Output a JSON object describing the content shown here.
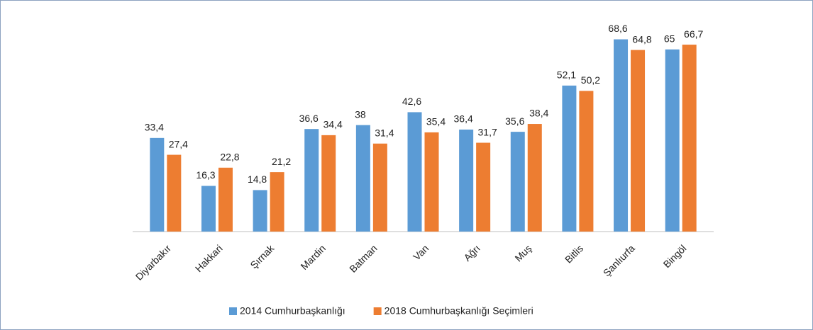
{
  "chart_data": {
    "type": "bar",
    "categories": [
      "Diyarbakır",
      "Hakkari",
      "Şırnak",
      "Mardin",
      "Batman",
      "Van",
      "Ağrı",
      "Muş",
      "Bitlis",
      "Şanlıurfa",
      "Bingöl"
    ],
    "series": [
      {
        "name": "2014 Cumhurbaşkanlığı",
        "color": "#5b9bd5",
        "values": [
          33.4,
          16.3,
          14.8,
          36.6,
          38,
          42.6,
          36.4,
          35.6,
          52.1,
          68.6,
          65
        ],
        "value_labels": [
          "33,4",
          "16,3",
          "14,8",
          "36,6",
          "38",
          "42,6",
          "36,4",
          "35,6",
          "52,1",
          "68,6",
          "65"
        ]
      },
      {
        "name": "2018 Cumhurbaşkanlığı Seçimleri",
        "color": "#ed7d31",
        "values": [
          27.4,
          22.8,
          21.2,
          34.4,
          31.4,
          35.4,
          31.7,
          38.4,
          50.2,
          64.8,
          66.7
        ],
        "value_labels": [
          "27,4",
          "22,8",
          "21,2",
          "34,4",
          "31,4",
          "35,4",
          "31,7",
          "38,4",
          "50,2",
          "64,8",
          "66,7"
        ]
      }
    ],
    "ylim": [
      0,
      70
    ],
    "legend": "bottom"
  }
}
